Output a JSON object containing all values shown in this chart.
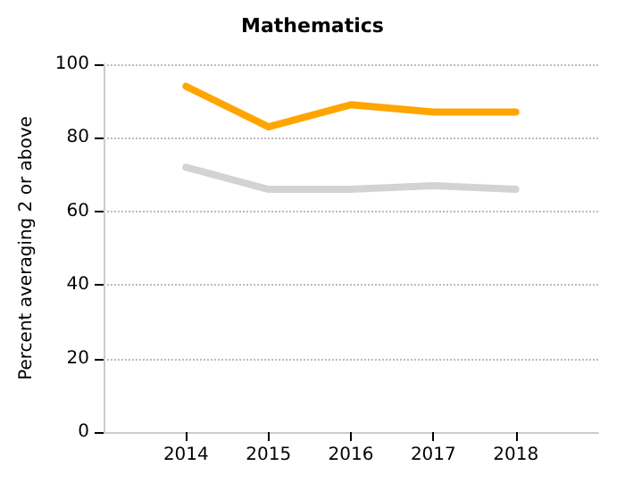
{
  "chart_data": {
    "type": "line",
    "title": "Mathematics",
    "ylabel": "Percent averaging 2 or above",
    "x": [
      2014,
      2015,
      2016,
      2017,
      2018
    ],
    "series": [
      {
        "color": "#ffa500",
        "values": [
          94,
          83,
          89,
          87,
          87
        ]
      },
      {
        "color": "#d3d3d3",
        "values": [
          72,
          66,
          66,
          67,
          66
        ]
      }
    ],
    "xlim": [
      2013,
      2019
    ],
    "xticks": [
      2014,
      2015,
      2016,
      2017,
      2018
    ],
    "ylim": [
      0,
      100
    ],
    "yticks": [
      0,
      20,
      40,
      60,
      80,
      100
    ],
    "grid": "y",
    "marker": "none",
    "line_style": "solid"
  }
}
